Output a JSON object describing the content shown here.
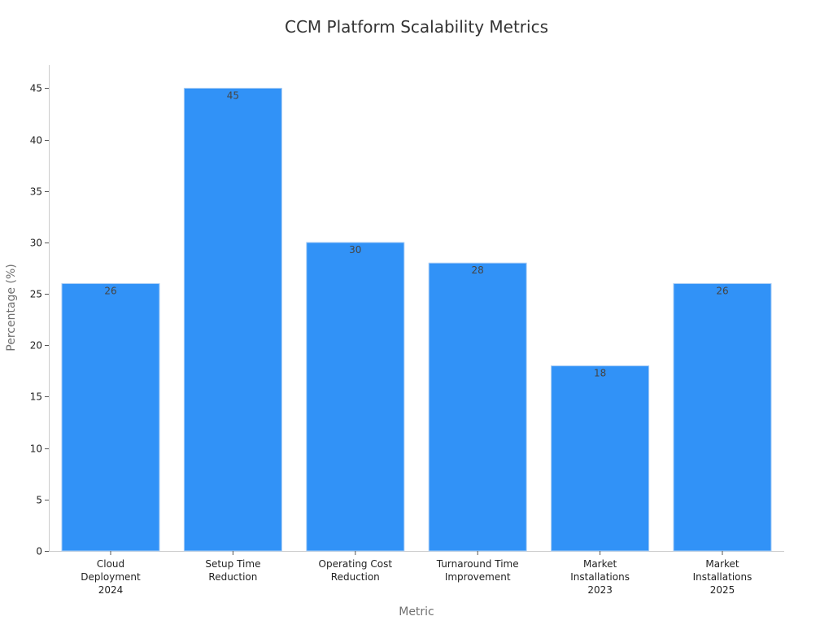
{
  "chart_data": {
    "type": "bar",
    "title": "CCM Platform Scalability Metrics",
    "xlabel": "Metric",
    "ylabel": "Percentage (%)",
    "categories": [
      [
        "Cloud",
        "Deployment",
        "2024"
      ],
      [
        "Setup Time",
        "Reduction"
      ],
      [
        "Operating Cost",
        "Reduction"
      ],
      [
        "Turnaround Time",
        "Improvement"
      ],
      [
        "Market",
        "Installations",
        "2023"
      ],
      [
        "Market",
        "Installations",
        "2025"
      ]
    ],
    "values": [
      26,
      45,
      30,
      28,
      18,
      26
    ],
    "ylim": [
      0,
      47.25
    ],
    "yticks": [
      0,
      5,
      10,
      15,
      20,
      25,
      30,
      35,
      40,
      45
    ],
    "bar_color": "#3192f7",
    "grid": false,
    "data_labels": true
  }
}
